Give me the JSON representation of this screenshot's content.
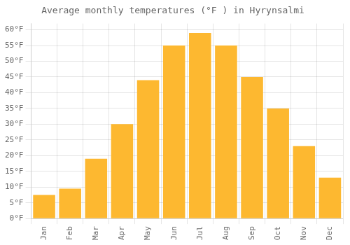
{
  "chart_data": {
    "type": "bar",
    "title": "Average monthly temperatures (°F ) in Hyrynsalmi",
    "categories": [
      "Jan",
      "Feb",
      "Mar",
      "Apr",
      "May",
      "Jun",
      "Jul",
      "Aug",
      "Sep",
      "Oct",
      "Nov",
      "Dec"
    ],
    "values": [
      7.5,
      9.5,
      19,
      30,
      44,
      55,
      59,
      55,
      45,
      35,
      23,
      13
    ],
    "color": "#FDB830",
    "ylim": [
      0,
      62
    ],
    "yticks": [
      {
        "value": 0,
        "label": "0°F"
      },
      {
        "value": 5,
        "label": "5°F"
      },
      {
        "value": 10,
        "label": "10°F"
      },
      {
        "value": 15,
        "label": "15°F"
      },
      {
        "value": 20,
        "label": "20°F"
      },
      {
        "value": 25,
        "label": "25°F"
      },
      {
        "value": 30,
        "label": "30°F"
      },
      {
        "value": 35,
        "label": "35°F"
      },
      {
        "value": 40,
        "label": "40°F"
      },
      {
        "value": 45,
        "label": "45°F"
      },
      {
        "value": 50,
        "label": "50°F"
      },
      {
        "value": 55,
        "label": "55°F"
      },
      {
        "value": 60,
        "label": "60°F"
      }
    ],
    "grid": true
  }
}
